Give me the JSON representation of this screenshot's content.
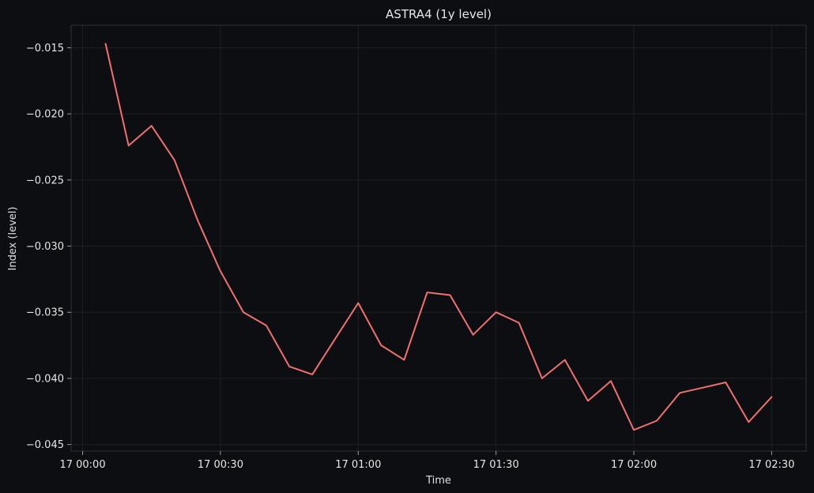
{
  "chart_data": {
    "type": "line",
    "title": "ASTRA4 (1y level)",
    "xlabel": "Time",
    "ylabel": "Index (level)",
    "grid": true,
    "x_tick_labels": [
      "17 00:00",
      "17 00:30",
      "17 01:00",
      "17 01:30",
      "17 02:00",
      "17 02:30"
    ],
    "x_tick_minutes": [
      0,
      30,
      60,
      90,
      120,
      150
    ],
    "xlim_minutes": [
      -2.5,
      157.5
    ],
    "y_tick_labels": [
      "−0.015",
      "−0.020",
      "−0.025",
      "−0.030",
      "−0.035",
      "−0.040",
      "−0.045"
    ],
    "y_ticks": [
      -0.015,
      -0.02,
      -0.025,
      -0.03,
      -0.035,
      -0.04,
      -0.045
    ],
    "ylim": [
      -0.0455,
      -0.0133
    ],
    "series": [
      {
        "name": "ASTRA4",
        "color": "#f07070",
        "x_minutes": [
          5,
          10,
          15,
          20,
          25,
          30,
          35,
          40,
          45,
          50,
          55,
          60,
          65,
          70,
          75,
          80,
          85,
          90,
          95,
          100,
          105,
          110,
          115,
          120,
          125,
          130,
          135,
          140,
          145,
          150
        ],
        "values": [
          -0.0147,
          -0.0224,
          -0.0209,
          -0.0235,
          -0.028,
          -0.0319,
          -0.035,
          -0.036,
          -0.0391,
          -0.0397,
          -0.037,
          -0.0343,
          -0.0375,
          -0.0386,
          -0.0335,
          -0.0337,
          -0.0367,
          -0.035,
          -0.0358,
          -0.04,
          -0.0386,
          -0.0417,
          -0.0402,
          -0.0439,
          -0.0432,
          -0.0411,
          -0.0407,
          -0.0403,
          -0.0433,
          -0.0414
        ]
      }
    ]
  },
  "colors": {
    "background": "#0d0e12",
    "grid": "#1e2026",
    "axes": "#2e3038",
    "text": "#e6e6e6"
  }
}
